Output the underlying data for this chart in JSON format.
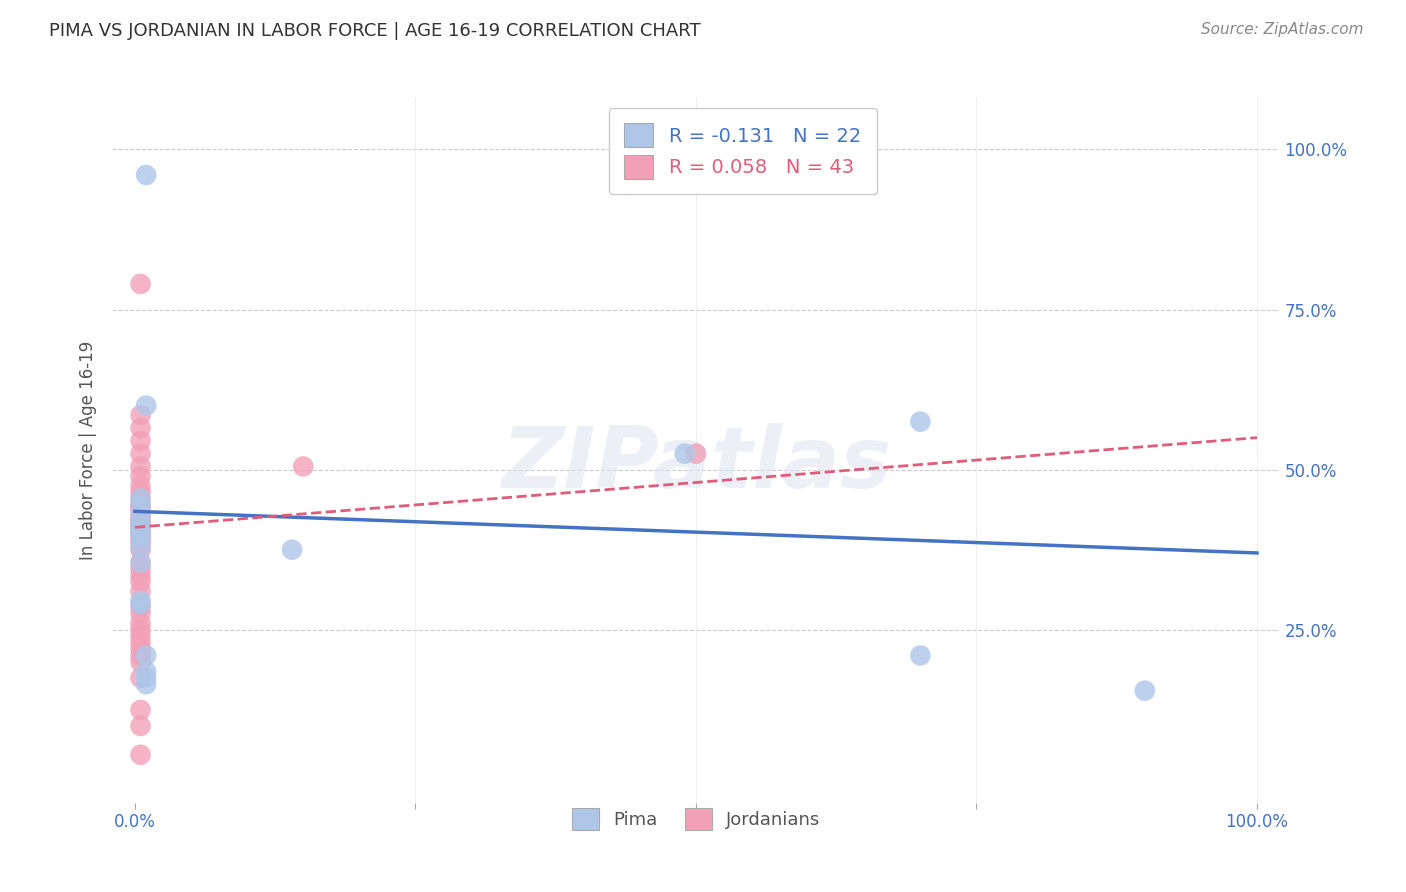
{
  "title": "PIMA VS JORDANIAN IN LABOR FORCE | AGE 16-19 CORRELATION CHART",
  "source": "Source: ZipAtlas.com",
  "ylabel": "In Labor Force | Age 16-19",
  "xlim": [
    -0.02,
    1.02
  ],
  "ylim": [
    -0.02,
    1.08
  ],
  "pima_R": -0.131,
  "pima_N": 22,
  "jordanian_R": 0.058,
  "jordanian_N": 43,
  "pima_color": "#aec6e8",
  "pima_line_color": "#4472c4",
  "jordanian_color": "#f2a0b8",
  "jordanian_line_color": "#e05c7a",
  "pima_x": [
    0.01,
    0.01,
    0.005,
    0.005,
    0.005,
    0.005,
    0.005,
    0.005,
    0.005,
    0.005,
    0.005,
    0.005,
    0.01,
    0.01,
    0.01,
    0.01,
    0.14,
    0.49,
    0.7,
    0.7,
    0.9,
    0.005
  ],
  "pima_y": [
    0.96,
    0.6,
    0.455,
    0.445,
    0.43,
    0.415,
    0.41,
    0.4,
    0.395,
    0.38,
    0.355,
    0.295,
    0.21,
    0.185,
    0.175,
    0.165,
    0.375,
    0.525,
    0.575,
    0.21,
    0.155,
    0.29
  ],
  "jordanian_x": [
    0.005,
    0.005,
    0.005,
    0.005,
    0.005,
    0.005,
    0.005,
    0.005,
    0.005,
    0.005,
    0.005,
    0.005,
    0.005,
    0.005,
    0.005,
    0.005,
    0.005,
    0.005,
    0.005,
    0.005,
    0.005,
    0.005,
    0.005,
    0.005,
    0.005,
    0.005,
    0.005,
    0.005,
    0.005,
    0.005,
    0.005,
    0.005,
    0.005,
    0.005,
    0.005,
    0.005,
    0.005,
    0.005,
    0.005,
    0.005,
    0.005,
    0.15,
    0.5
  ],
  "jordanian_y": [
    0.79,
    0.585,
    0.565,
    0.545,
    0.525,
    0.505,
    0.49,
    0.475,
    0.465,
    0.455,
    0.445,
    0.44,
    0.435,
    0.425,
    0.42,
    0.415,
    0.41,
    0.405,
    0.4,
    0.395,
    0.39,
    0.385,
    0.375,
    0.355,
    0.345,
    0.335,
    0.325,
    0.31,
    0.285,
    0.275,
    0.26,
    0.25,
    0.24,
    0.23,
    0.22,
    0.21,
    0.2,
    0.175,
    0.125,
    0.1,
    0.055,
    0.505,
    0.525
  ],
  "pima_line_x": [
    0.0,
    1.0
  ],
  "pima_line_y": [
    0.435,
    0.37
  ],
  "jordanian_line_x": [
    0.0,
    1.0
  ],
  "jordanian_line_y": [
    0.41,
    0.55
  ],
  "background_color": "#ffffff",
  "grid_color": "#cccccc",
  "watermark": "ZIPatlas"
}
